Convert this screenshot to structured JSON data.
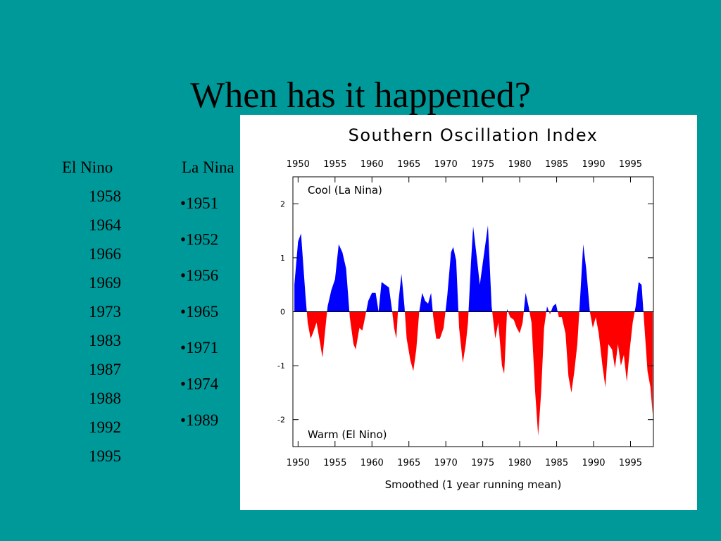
{
  "slide": {
    "title": "When has it happened?",
    "el_nino": {
      "heading": "El Nino",
      "years": [
        "1958",
        "1964",
        "1966",
        "1969",
        "1973",
        "1983",
        "1987",
        "1988",
        "1992",
        "1995"
      ]
    },
    "la_nina": {
      "heading": "La Nina",
      "years": [
        "1951",
        "1952",
        "1956",
        "1965",
        "1971",
        "1974",
        "1989"
      ]
    }
  },
  "chart_data": {
    "type": "area",
    "title": "Southern Oscillation Index",
    "xlabel": "Smoothed (1 year running mean)",
    "annotations": [
      "Cool (La Nina)",
      "Warm (El Nino)"
    ],
    "positive_color": "#0000ff",
    "negative_color": "#ff0000",
    "xlim": [
      1949.3,
      1998.1
    ],
    "xticks": [
      1950,
      1955,
      1960,
      1965,
      1970,
      1975,
      1980,
      1985,
      1990,
      1995
    ],
    "ylim": [
      -2.5,
      2.5
    ],
    "yticks": [
      -2,
      -1,
      0,
      1,
      2
    ],
    "x": [
      1949.5,
      1950,
      1950.4,
      1951,
      1951.3,
      1951.7,
      1952,
      1952.5,
      1953,
      1953.3,
      1953.7,
      1954,
      1954.5,
      1955,
      1955.5,
      1956,
      1956.5,
      1957,
      1957.5,
      1957.8,
      1958.3,
      1958.7,
      1959,
      1959.5,
      1960,
      1960.5,
      1960.9,
      1961.3,
      1961.8,
      1962.3,
      1962.7,
      1963,
      1963.3,
      1963.6,
      1964,
      1964.4,
      1964.7,
      1965.2,
      1965.6,
      1966,
      1966.4,
      1966.8,
      1967.2,
      1967.6,
      1968,
      1968.3,
      1968.7,
      1969.2,
      1969.7,
      1970.2,
      1970.7,
      1971,
      1971.4,
      1971.8,
      1972.3,
      1972.7,
      1973,
      1973.4,
      1973.7,
      1974.2,
      1974.6,
      1975.2,
      1975.7,
      1976.2,
      1976.7,
      1977.1,
      1977.6,
      1977.9,
      1978.3,
      1978.7,
      1979.2,
      1979.6,
      1980,
      1980.4,
      1980.8,
      1981.2,
      1981.6,
      1982.1,
      1982.5,
      1982.9,
      1983.3,
      1983.7,
      1984.1,
      1984.5,
      1984.9,
      1985.3,
      1985.7,
      1986.2,
      1986.6,
      1987,
      1987.4,
      1987.8,
      1988.2,
      1988.6,
      1989,
      1989.5,
      1989.9,
      1990.3,
      1990.7,
      1991.2,
      1991.6,
      1992,
      1992.5,
      1992.9,
      1993.3,
      1993.7,
      1994.1,
      1994.5,
      1994.9,
      1995.3,
      1995.7,
      1996.1,
      1996.5,
      1996.9,
      1997.3,
      1997.7,
      1998
    ],
    "values": [
      0.5,
      1.3,
      1.45,
      0.3,
      -0.2,
      -0.5,
      -0.4,
      -0.2,
      -0.6,
      -0.85,
      -0.3,
      0.1,
      0.4,
      0.6,
      1.25,
      1.1,
      0.8,
      -0.1,
      -0.6,
      -0.7,
      -0.3,
      -0.35,
      -0.15,
      0.2,
      0.35,
      0.35,
      0.0,
      0.55,
      0.5,
      0.45,
      0.05,
      -0.3,
      -0.5,
      0.2,
      0.7,
      0.1,
      -0.5,
      -0.9,
      -1.1,
      -0.7,
      0.0,
      0.35,
      0.2,
      0.15,
      0.35,
      -0.1,
      -0.5,
      -0.5,
      -0.3,
      0.3,
      1.1,
      1.2,
      0.95,
      -0.3,
      -0.95,
      -0.6,
      -0.2,
      0.9,
      1.58,
      1.0,
      0.5,
      1.1,
      1.6,
      0.1,
      -0.5,
      -0.2,
      -1.0,
      -1.15,
      0.05,
      -0.1,
      -0.15,
      -0.3,
      -0.4,
      -0.2,
      0.35,
      0.1,
      -0.2,
      -1.5,
      -2.3,
      -1.5,
      -0.3,
      0.1,
      -0.05,
      0.1,
      0.15,
      -0.1,
      -0.1,
      -0.4,
      -1.2,
      -1.5,
      -1.1,
      -0.6,
      0.3,
      1.25,
      0.8,
      0.0,
      -0.3,
      -0.1,
      -0.4,
      -1.0,
      -1.4,
      -0.6,
      -0.7,
      -1.05,
      -0.6,
      -1.0,
      -0.8,
      -1.3,
      -0.7,
      -0.2,
      0.1,
      0.55,
      0.5,
      -0.3,
      -1.1,
      -1.4,
      -1.9
    ]
  }
}
